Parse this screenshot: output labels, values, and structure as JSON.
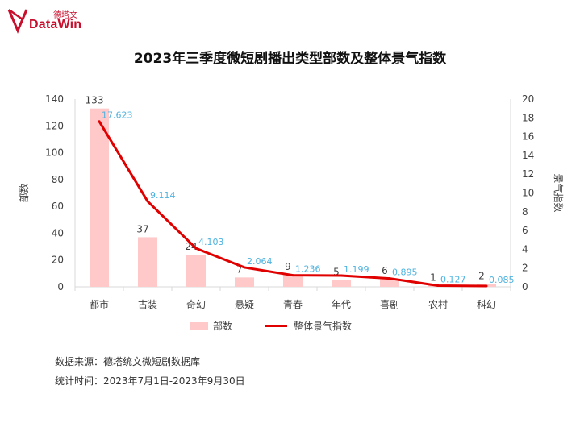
{
  "logo": {
    "cn": "德塔文",
    "en": "DataWin"
  },
  "chart_data": {
    "type": "bar",
    "title": "2023年三季度微短剧播出类型部数及整体景气指数",
    "categories": [
      "都市",
      "古装",
      "奇幻",
      "悬疑",
      "青春",
      "年代",
      "喜剧",
      "农村",
      "科幻"
    ],
    "series": [
      {
        "name": "部数",
        "type": "bar",
        "axis": "left",
        "values": [
          133,
          37,
          24,
          7,
          9,
          5,
          6,
          1,
          2
        ]
      },
      {
        "name": "整体景气指数",
        "type": "line",
        "axis": "right",
        "values": [
          17.623,
          9.114,
          4.103,
          2.064,
          1.236,
          1.199,
          0.895,
          0.127,
          0.085
        ]
      }
    ],
    "ylabel": "部数",
    "y2label": "景气指数",
    "ylim": [
      0,
      140
    ],
    "yticks": [
      0,
      20,
      40,
      60,
      80,
      100,
      120,
      140
    ],
    "y2lim": [
      0,
      20
    ],
    "y2ticks": [
      0,
      2,
      4,
      6,
      8,
      10,
      12,
      14,
      16,
      18,
      20
    ],
    "grid": false,
    "legend": "bottom",
    "colors": {
      "bar": "#ffc9c9",
      "line": "#e00000",
      "line_label": "#4fb3e0",
      "axis": "#d9d9d9",
      "accent": "#c8102e"
    }
  },
  "notes": {
    "source": "数据来源：德塔统文微短剧数据库",
    "period": "统计时间：2023年7月1日-2023年9月30日"
  }
}
